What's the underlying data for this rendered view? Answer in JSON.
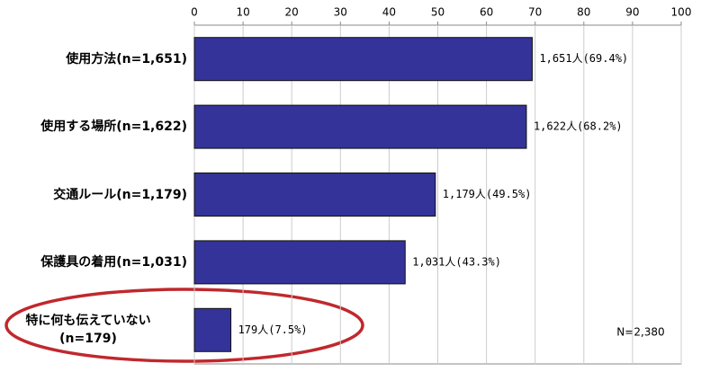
{
  "chart_data": {
    "type": "bar",
    "orientation": "horizontal",
    "categories": [
      "使用方法(n=1,651)",
      "使用する場所(n=1,622)",
      "交通ルール(n=1,179)",
      "保護具の着用(n=1,031)",
      "特に何も伝えていない\n(n=179)"
    ],
    "values": [
      69.4,
      68.2,
      49.5,
      43.3,
      7.5
    ],
    "value_labels": [
      "1,651人(69.4%)",
      "1,622人(68.2%)",
      "1,179人(49.5%)",
      "1,031人(43.3%)",
      "179人(7.5%)"
    ],
    "color": "#333399",
    "xlim": [
      0,
      100
    ],
    "xticks": [
      0,
      10,
      20,
      30,
      40,
      50,
      60,
      70,
      80,
      90,
      100
    ],
    "grid": true,
    "annotation": "N=2,380"
  }
}
